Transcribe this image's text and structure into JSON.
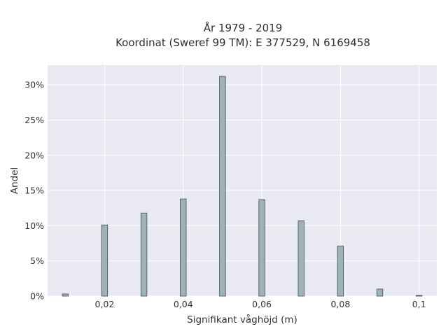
{
  "chart_data": {
    "type": "bar",
    "title_lines": [
      "År 1979 - 2019",
      "Koordinat (Sweref 99 TM): E 377529, N 6169458"
    ],
    "xlabel": "Signifikant våghöjd (m)",
    "ylabel": "Andel",
    "x": [
      0.01,
      0.02,
      0.03,
      0.04,
      0.05,
      0.06,
      0.07,
      0.08,
      0.09,
      0.1
    ],
    "values": [
      0.3,
      10.1,
      11.8,
      13.8,
      31.2,
      13.7,
      10.7,
      7.1,
      1.0,
      0.1
    ],
    "xlim": [
      0.0055,
      0.1045
    ],
    "ylim": [
      0,
      32.8
    ],
    "x_ticks": [
      0.02,
      0.04,
      0.06,
      0.08,
      0.1
    ],
    "x_tick_labels": [
      "0,02",
      "0,04",
      "0,06",
      "0,08",
      "0,1"
    ],
    "y_ticks": [
      0,
      5,
      10,
      15,
      20,
      25,
      30
    ],
    "y_tick_labels": [
      "0%",
      "5%",
      "10%",
      "15%",
      "20%",
      "25%",
      "30%"
    ],
    "grid": true,
    "bar_color": "#9fb3b5",
    "bar_edge_color": "#3f4a4b",
    "plot_background": "#e9e9f2"
  }
}
